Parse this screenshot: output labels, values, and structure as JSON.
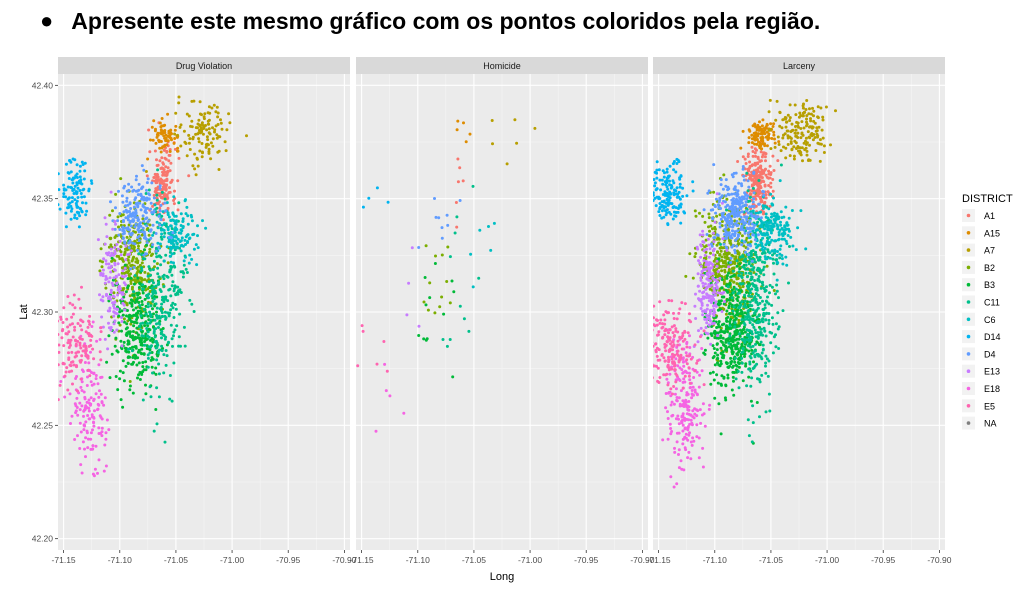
{
  "heading": {
    "bullet": "●",
    "text": "Apresente este mesmo gráfico com os pontos coloridos pela região."
  },
  "chart_data": {
    "type": "scatter",
    "facet_by": "crime type",
    "xlabel": "Long",
    "ylabel": "Lat",
    "xlim": [
      -71.155,
      -70.895
    ],
    "ylim": [
      42.195,
      42.405
    ],
    "x_ticks": [
      -71.15,
      -71.1,
      -71.05,
      -71.0,
      -70.95,
      -70.9
    ],
    "x_tick_labels": [
      "-71.15",
      "-71.10",
      "-71.05",
      "-71.00",
      "-70.95",
      "-70.90"
    ],
    "y_ticks": [
      42.2,
      42.25,
      42.3,
      42.35,
      42.4
    ],
    "y_tick_labels": [
      "42.20",
      "42.25",
      "42.30",
      "42.35",
      "42.40"
    ],
    "grid": true,
    "panels": [
      {
        "label": "Drug Violation",
        "density": 1.0
      },
      {
        "label": "Homicide",
        "density": 0.03
      },
      {
        "label": "Larceny",
        "density": 1.4
      }
    ],
    "legend": {
      "title": "DISTRICT",
      "placement": "right",
      "entries": [
        {
          "name": "A1",
          "color": "#F8766D"
        },
        {
          "name": "A15",
          "color": "#DE8C00"
        },
        {
          "name": "A7",
          "color": "#B79F00"
        },
        {
          "name": "B2",
          "color": "#7CAE00"
        },
        {
          "name": "B3",
          "color": "#00BA38"
        },
        {
          "name": "C11",
          "color": "#00C08B"
        },
        {
          "name": "C6",
          "color": "#00BFC4"
        },
        {
          "name": "D14",
          "color": "#00B4F0"
        },
        {
          "name": "D4",
          "color": "#619CFF"
        },
        {
          "name": "E13",
          "color": "#C77CFF"
        },
        {
          "name": "E18",
          "color": "#F564E3"
        },
        {
          "name": "E5",
          "color": "#FF64B0"
        },
        {
          "name": "NA",
          "color": "#7F7F7F"
        }
      ]
    },
    "clusters": [
      {
        "district": "A1",
        "center": [
          -71.062,
          42.357
        ],
        "spread": [
          0.006,
          0.008
        ],
        "count": 160
      },
      {
        "district": "A15",
        "center": [
          -71.059,
          42.378
        ],
        "spread": [
          0.006,
          0.003
        ],
        "count": 70
      },
      {
        "district": "A7",
        "center": [
          -71.025,
          42.379
        ],
        "spread": [
          0.012,
          0.007
        ],
        "count": 120
      },
      {
        "district": "B2",
        "center": [
          -71.088,
          42.322
        ],
        "spread": [
          0.012,
          0.013
        ],
        "count": 320
      },
      {
        "district": "B3",
        "center": [
          -71.085,
          42.292
        ],
        "spread": [
          0.011,
          0.013
        ],
        "count": 300
      },
      {
        "district": "C11",
        "center": [
          -71.063,
          42.306
        ],
        "spread": [
          0.01,
          0.02
        ],
        "count": 280
      },
      {
        "district": "C6",
        "center": [
          -71.05,
          42.336
        ],
        "spread": [
          0.01,
          0.007
        ],
        "count": 130
      },
      {
        "district": "D14",
        "center": [
          -71.14,
          42.352
        ],
        "spread": [
          0.008,
          0.007
        ],
        "count": 110
      },
      {
        "district": "D4",
        "center": [
          -71.082,
          42.343
        ],
        "spread": [
          0.01,
          0.008
        ],
        "count": 200
      },
      {
        "district": "E13",
        "center": [
          -71.105,
          42.313
        ],
        "spread": [
          0.006,
          0.012
        ],
        "count": 130
      },
      {
        "district": "E18",
        "center": [
          -71.127,
          42.258
        ],
        "spread": [
          0.008,
          0.014
        ],
        "count": 150
      },
      {
        "district": "E5",
        "center": [
          -71.14,
          42.285
        ],
        "spread": [
          0.01,
          0.009
        ],
        "count": 130
      }
    ]
  }
}
